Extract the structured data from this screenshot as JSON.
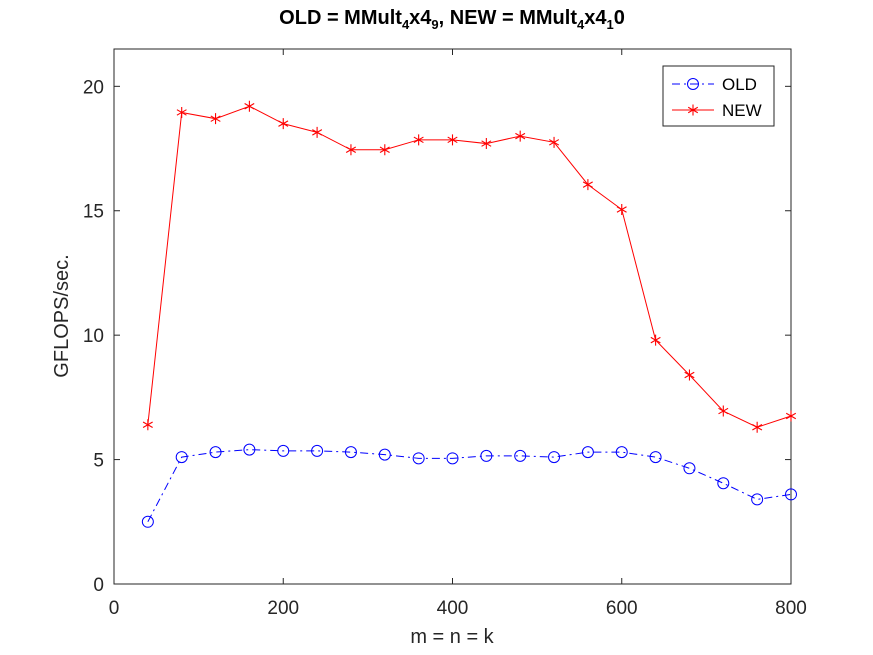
{
  "chart_data": {
    "type": "line",
    "title": {
      "part1": "OLD = MMult",
      "sub1": "4",
      "part2": "x4",
      "sub2": "9",
      "part3": ", NEW = MMult",
      "sub3": "4",
      "part4": "x4",
      "sub4": "1",
      "part5": "0"
    },
    "xlabel": "m = n = k",
    "ylabel": "GFLOPS/sec.",
    "xlim": [
      0,
      800
    ],
    "ylim": [
      0,
      21.5
    ],
    "xticks": [
      0,
      200,
      400,
      600,
      800
    ],
    "yticks": [
      0,
      5,
      10,
      15,
      20
    ],
    "grid": false,
    "legend_position": "top-right",
    "x": [
      40,
      80,
      120,
      160,
      200,
      240,
      280,
      320,
      360,
      400,
      440,
      480,
      520,
      560,
      600,
      640,
      680,
      720,
      760,
      800
    ],
    "series": [
      {
        "name": "OLD",
        "color": "#0000ff",
        "marker": "circle",
        "line_style": "dash-dot",
        "values": [
          2.5,
          5.1,
          5.3,
          5.4,
          5.35,
          5.35,
          5.3,
          5.2,
          5.05,
          5.05,
          5.15,
          5.15,
          5.1,
          5.3,
          5.3,
          5.1,
          4.65,
          4.05,
          3.4,
          3.6
        ]
      },
      {
        "name": "NEW",
        "color": "#ff0000",
        "marker": "asterisk",
        "line_style": "solid",
        "values": [
          6.4,
          18.95,
          18.7,
          19.2,
          18.5,
          18.15,
          17.45,
          17.45,
          17.85,
          17.85,
          17.7,
          18.0,
          17.75,
          16.05,
          15.05,
          9.8,
          8.4,
          6.95,
          6.3,
          6.75
        ]
      }
    ]
  }
}
